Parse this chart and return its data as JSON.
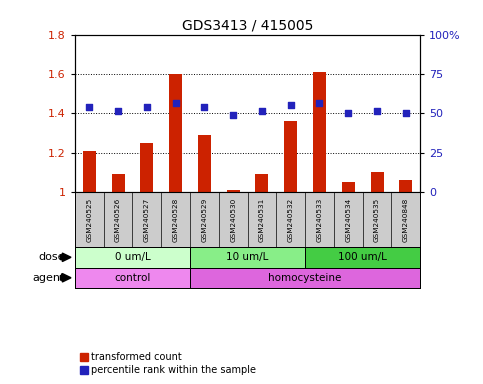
{
  "title": "GDS3413 / 415005",
  "samples": [
    "GSM240525",
    "GSM240526",
    "GSM240527",
    "GSM240528",
    "GSM240529",
    "GSM240530",
    "GSM240531",
    "GSM240532",
    "GSM240533",
    "GSM240534",
    "GSM240535",
    "GSM240848"
  ],
  "red_values": [
    1.21,
    1.09,
    1.25,
    1.6,
    1.29,
    1.01,
    1.09,
    1.36,
    1.61,
    1.05,
    1.1,
    1.06
  ],
  "blue_values": [
    1.43,
    1.41,
    1.43,
    1.45,
    1.43,
    1.39,
    1.41,
    1.44,
    1.45,
    1.4,
    1.41,
    1.4
  ],
  "red_base": 1.0,
  "ylim_left": [
    1.0,
    1.8
  ],
  "ylim_right": [
    0,
    100
  ],
  "yticks_left": [
    1.0,
    1.2,
    1.4,
    1.6,
    1.8
  ],
  "yticks_right": [
    0,
    25,
    50,
    75,
    100
  ],
  "ytick_labels_left": [
    "1",
    "1.2",
    "1.4",
    "1.6",
    "1.8"
  ],
  "ytick_labels_right": [
    "0",
    "25",
    "50",
    "75",
    "100%"
  ],
  "bar_color": "#cc2200",
  "dot_color": "#2222bb",
  "dose_groups": [
    {
      "label": "0 um/L",
      "start": 0,
      "end": 3,
      "color": "#ccffcc"
    },
    {
      "label": "10 um/L",
      "start": 4,
      "end": 7,
      "color": "#88ee88"
    },
    {
      "label": "100 um/L",
      "start": 8,
      "end": 11,
      "color": "#44cc44"
    }
  ],
  "agent_groups": [
    {
      "label": "control",
      "start": 0,
      "end": 3,
      "color": "#ee88ee"
    },
    {
      "label": "homocysteine",
      "start": 4,
      "end": 11,
      "color": "#dd66dd"
    }
  ],
  "dose_label": "dose",
  "agent_label": "agent",
  "legend_red": "transformed count",
  "legend_blue": "percentile rank within the sample",
  "bg_color": "#ffffff",
  "plot_bg": "#ffffff",
  "sample_bg": "#cccccc"
}
